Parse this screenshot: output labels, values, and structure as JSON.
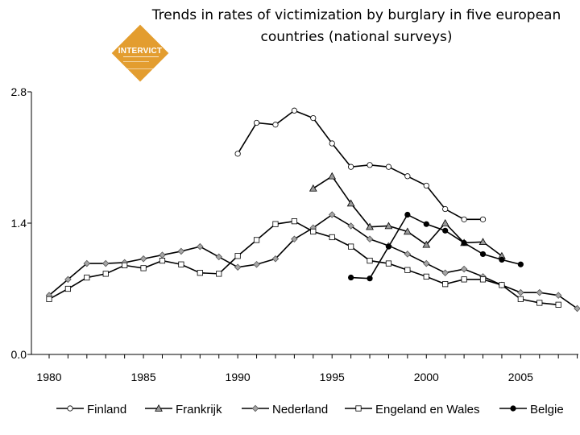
{
  "chart_data": {
    "type": "line",
    "title": "Trends in rates of victimization by burglary in five european countries (national surveys)",
    "xlabel": "",
    "ylabel": "",
    "xlim": [
      1980,
      2009
    ],
    "ylim": [
      0,
      2.8
    ],
    "y_ticks": [
      "0.0",
      "1.4",
      "2.8"
    ],
    "x_ticks": [
      "1980",
      "1985",
      "1990",
      "1995",
      "2000",
      "2005"
    ],
    "grid": false,
    "legend_position": "bottom",
    "series": [
      {
        "name": "Finland",
        "marker": "circle",
        "fill": "#ffffff",
        "x": [
          1990,
          1991,
          1992,
          1993,
          1994,
          1995,
          1996,
          1997,
          1998,
          1999,
          2000,
          2001,
          2002,
          2003
        ],
        "y": [
          2.14,
          2.47,
          2.45,
          2.6,
          2.52,
          2.25,
          2.0,
          2.02,
          2.0,
          1.9,
          1.8,
          1.55,
          1.44,
          1.44
        ]
      },
      {
        "name": "Frankrijk",
        "marker": "triangle",
        "fill": "#999999",
        "x": [
          1994,
          1995,
          1996,
          1997,
          1998,
          1999,
          2000,
          2001,
          2002,
          2003,
          2004
        ],
        "y": [
          1.77,
          1.9,
          1.61,
          1.36,
          1.37,
          1.31,
          1.17,
          1.4,
          1.19,
          1.2,
          1.05
        ]
      },
      {
        "name": "Nederland",
        "marker": "diamond",
        "fill": "#a6a6a6",
        "x": [
          1980,
          1981,
          1982,
          1983,
          1984,
          1985,
          1986,
          1987,
          1988,
          1989,
          1990,
          1991,
          1992,
          1993,
          1994,
          1995,
          1996,
          1997,
          1998,
          1999,
          2000,
          2001,
          2002,
          2003,
          2004,
          2005,
          2006,
          2007,
          2008
        ],
        "y": [
          0.63,
          0.8,
          0.97,
          0.97,
          0.98,
          1.02,
          1.06,
          1.1,
          1.15,
          1.04,
          0.93,
          0.96,
          1.02,
          1.23,
          1.35,
          1.49,
          1.37,
          1.23,
          1.16,
          1.07,
          0.97,
          0.87,
          0.91,
          0.83,
          0.74,
          0.66,
          0.66,
          0.63,
          0.49
        ]
      },
      {
        "name": "Engeland en Wales",
        "marker": "square",
        "fill": "#ffffff",
        "x": [
          1980,
          1981,
          1982,
          1983,
          1984,
          1985,
          1986,
          1987,
          1988,
          1989,
          1990,
          1991,
          1992,
          1993,
          1994,
          1995,
          1996,
          1997,
          1998,
          1999,
          2000,
          2001,
          2002,
          2003,
          2004,
          2005,
          2006,
          2007
        ],
        "y": [
          0.59,
          0.7,
          0.82,
          0.86,
          0.95,
          0.92,
          1.0,
          0.96,
          0.87,
          0.86,
          1.05,
          1.22,
          1.39,
          1.42,
          1.31,
          1.25,
          1.15,
          1.0,
          0.97,
          0.9,
          0.83,
          0.75,
          0.8,
          0.8,
          0.74,
          0.59,
          0.55,
          0.53
        ]
      },
      {
        "name": "Belgie",
        "marker": "circle",
        "fill": "#000000",
        "x": [
          1996,
          1997,
          1998,
          1999,
          2000,
          2001,
          2002,
          2003,
          2004,
          2005
        ],
        "y": [
          0.82,
          0.81,
          1.15,
          1.49,
          1.39,
          1.32,
          1.19,
          1.07,
          1.01,
          0.96
        ]
      }
    ]
  },
  "logo": {
    "text": "INTERVICT"
  }
}
